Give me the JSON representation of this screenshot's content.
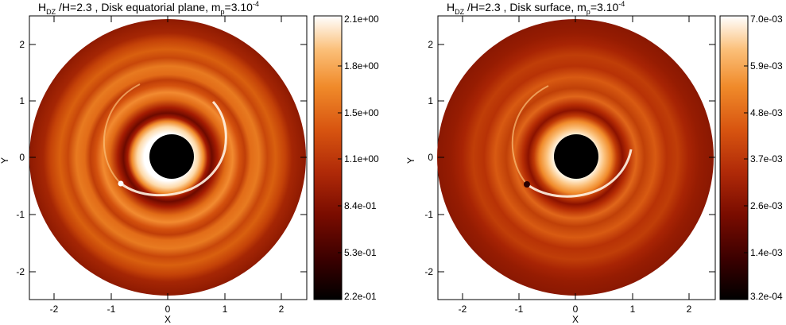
{
  "panels": [
    {
      "title_main": "H",
      "title_sub": "DZ",
      "title_mid": " /H=2.3 , Disk equatorial plane, m",
      "title_sub2": "p",
      "title_end": "=3.10",
      "title_sup": "-4",
      "xlabel": "X",
      "ylabel": "Y",
      "xticks": [
        "-2",
        "-1",
        "0",
        "1",
        "2"
      ],
      "yticks": [
        "2",
        "1",
        "0",
        "-1",
        "-2"
      ],
      "colorbar_labels": [
        "2.1e+00",
        "1.8e+00",
        "1.5e+00",
        "1.1e+00",
        "8.4e-01",
        "5.3e-01",
        "2.2e-01"
      ]
    },
    {
      "title_main": "H",
      "title_sub": "DZ",
      "title_mid": " /H=2.3 , Disk surface, m",
      "title_sub2": "p",
      "title_end": "=3.10",
      "title_sup": "-4",
      "xlabel": "X",
      "ylabel": "Y",
      "xticks": [
        "-2",
        "-1",
        "0",
        "1",
        "2"
      ],
      "yticks": [
        "2",
        "1",
        "0",
        "-1",
        "-2"
      ],
      "colorbar_labels": [
        "7.0e-03",
        "5.9e-03",
        "4.8e-03",
        "3.7e-03",
        "2.6e-03",
        "1.4e-03",
        "3.2e-04"
      ]
    }
  ],
  "colormap": [
    "#000000",
    "#3a0000",
    "#7a0c00",
    "#b02a08",
    "#d85510",
    "#f08a2a",
    "#fbbf78",
    "#ffffff"
  ]
}
